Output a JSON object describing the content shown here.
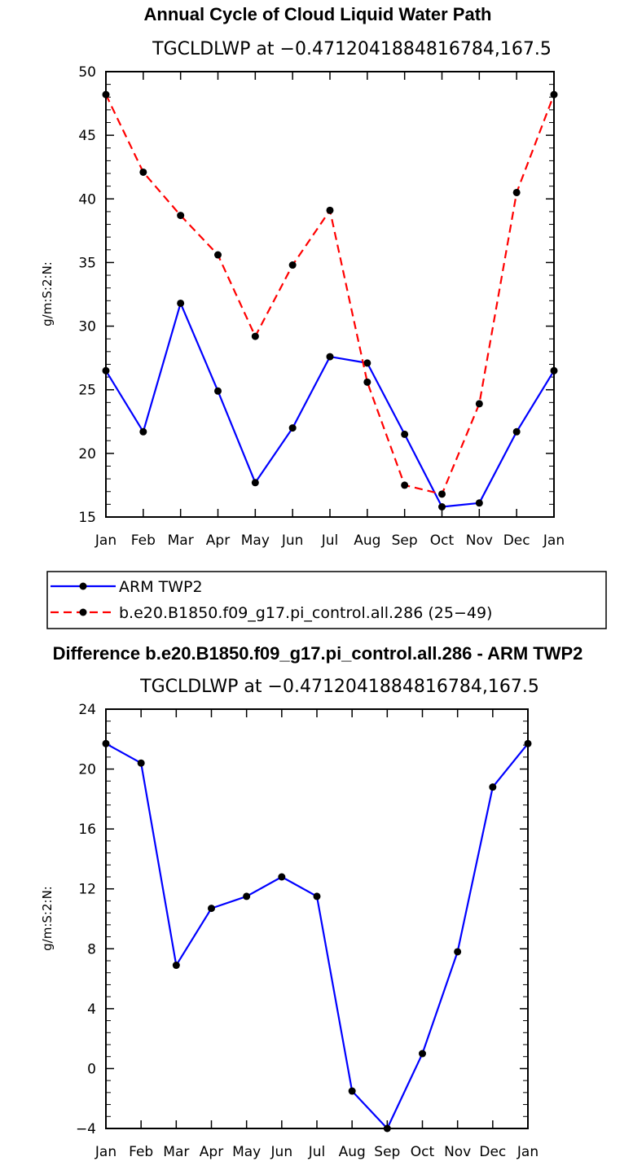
{
  "chart_data": [
    {
      "type": "line",
      "title": "Annual Cycle of Cloud Liquid Water Path",
      "subtitle": "TGCLDLWP at −0.4712041884816784,167.5",
      "ylabel": "g/m:S:2:N:",
      "xlabel": "",
      "categories": [
        "Jan",
        "Feb",
        "Mar",
        "Apr",
        "May",
        "Jun",
        "Jul",
        "Aug",
        "Sep",
        "Oct",
        "Nov",
        "Dec",
        "Jan"
      ],
      "ylim": [
        15,
        50
      ],
      "yticks": [
        15,
        20,
        25,
        30,
        35,
        40,
        45,
        50
      ],
      "series": [
        {
          "name": "ARM TWP2",
          "color": "#0000ff",
          "dash": "solid",
          "values": [
            26.5,
            21.7,
            31.8,
            24.9,
            17.7,
            22.0,
            27.6,
            27.1,
            21.5,
            15.8,
            16.1,
            21.7,
            26.5
          ]
        },
        {
          "name": "b.e20.B1850.f09_g17.pi_control.all.286 (25−49)",
          "color": "#ff0000",
          "dash": "dashed",
          "values": [
            48.2,
            42.1,
            38.7,
            35.6,
            29.2,
            34.8,
            39.1,
            25.6,
            17.5,
            16.8,
            23.9,
            40.5,
            48.2
          ]
        }
      ],
      "legend_position": "bottom"
    },
    {
      "type": "line",
      "title": "Difference b.e20.B1850.f09_g17.pi_control.all.286 - ARM TWP2",
      "subtitle": "TGCLDLWP at −0.4712041884816784,167.5",
      "ylabel": "g/m:S:2:N:",
      "xlabel": "",
      "categories": [
        "Jan",
        "Feb",
        "Mar",
        "Apr",
        "May",
        "Jun",
        "Jul",
        "Aug",
        "Sep",
        "Oct",
        "Nov",
        "Dec",
        "Jan"
      ],
      "ylim": [
        -4,
        24
      ],
      "yticks": [
        -4,
        0,
        4,
        8,
        12,
        16,
        20,
        24
      ],
      "series": [
        {
          "name": "difference",
          "color": "#0000ff",
          "dash": "solid",
          "values": [
            21.7,
            20.4,
            6.9,
            10.7,
            11.5,
            12.8,
            11.5,
            -1.5,
            -4.0,
            1.0,
            7.8,
            18.8,
            21.7
          ]
        }
      ]
    }
  ]
}
